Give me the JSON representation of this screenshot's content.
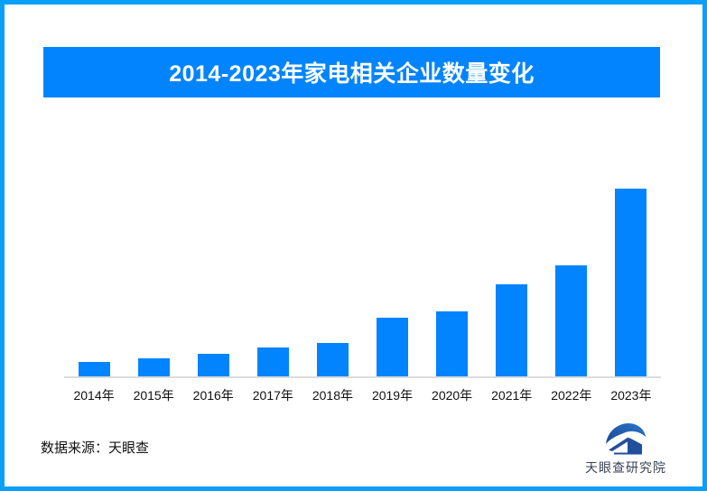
{
  "frame": {
    "border_color": "#0A9FF8",
    "background": "#FFFFFF"
  },
  "title_banner": {
    "text": "2014-2023年家电相关企业数量变化",
    "bg_color": "#0284FE",
    "text_color": "#FFFFFF"
  },
  "chart_data": {
    "type": "bar",
    "title": "2014-2023年家电相关企业数量变化",
    "categories": [
      "2014年",
      "2015年",
      "2016年",
      "2017年",
      "2018年",
      "2019年",
      "2020年",
      "2021年",
      "2022年",
      "2023年"
    ],
    "values": [
      16,
      20,
      25,
      32,
      37,
      65,
      72,
      102,
      123,
      208
    ],
    "value_note": "no numeric y-axis or data labels shown in the image; values are relative bar heights measured in screen pixels",
    "bar_color": "#0284FE",
    "axis_line_color": "#DCDCDC",
    "tick_label_color": "#111111",
    "xlabel": "",
    "ylabel": "",
    "grid": false,
    "legend": false
  },
  "footer": {
    "source_label": "数据来源：天眼查",
    "logo": {
      "name": "天眼查研究院",
      "icon": "tianyancha-swoosh-house-icon",
      "text_color": "#3A4254",
      "icon_colors": [
        "#18488F",
        "#2E76CC",
        "#224F9C"
      ]
    }
  }
}
